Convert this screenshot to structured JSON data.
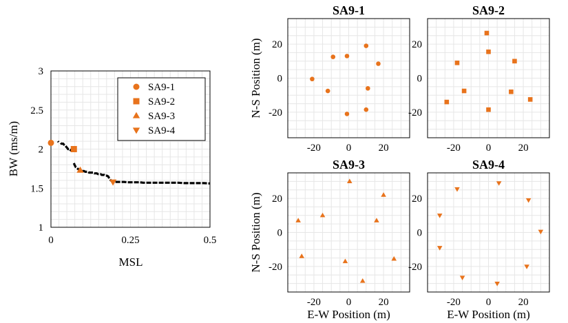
{
  "colors": {
    "marker": "#e8731c",
    "line": "#000000",
    "grid": "#e6e6e6"
  },
  "chart_data": [
    {
      "type": "line",
      "xlabel": "MSL",
      "ylabel": "BW (ms/m)",
      "xlim": [
        0,
        0.5
      ],
      "ylim": [
        1,
        3
      ],
      "xticks": [
        0,
        0.25,
        0.5
      ],
      "xtick_labels": [
        "0",
        "0.25",
        "0.5"
      ],
      "yticks": [
        1,
        1.5,
        2,
        2.5,
        3
      ],
      "ytick_labels": [
        "1",
        "1.5",
        "2",
        "2.5",
        "3"
      ],
      "grid": true,
      "legend": "top-right",
      "curve": {
        "x": [
          0.022,
          0.024,
          0.031,
          0.033,
          0.038,
          0.04,
          0.044,
          0.046,
          0.048,
          0.05,
          0.052,
          0.054,
          0.056,
          0.058,
          0.06,
          0.062,
          0.064,
          0.066,
          0.068,
          0.07,
          0.072,
          0.075,
          0.078,
          0.081,
          0.084,
          0.087,
          0.09,
          0.093,
          0.096,
          0.1,
          0.104,
          0.108,
          0.112,
          0.116,
          0.12,
          0.124,
          0.128,
          0.132,
          0.136,
          0.14,
          0.144,
          0.148,
          0.152,
          0.156,
          0.16,
          0.164,
          0.168,
          0.172,
          0.176,
          0.18,
          0.184,
          0.188,
          0.192,
          0.196,
          0.2,
          0.205,
          0.21,
          0.22,
          0.23,
          0.24,
          0.25,
          0.26,
          0.27,
          0.28,
          0.29,
          0.3,
          0.31,
          0.32,
          0.34,
          0.36,
          0.38,
          0.4,
          0.42,
          0.44,
          0.46,
          0.48,
          0.5
        ],
        "y": [
          2.1,
          2.09,
          2.08,
          2.07,
          2.07,
          2.06,
          2.05,
          2.04,
          2.03,
          2.02,
          2.01,
          2.0,
          2.0,
          2.0,
          1.99,
          1.99,
          1.98,
          1.98,
          1.98,
          1.97,
          1.82,
          1.79,
          1.77,
          1.76,
          1.75,
          1.74,
          1.73,
          1.73,
          1.72,
          1.72,
          1.72,
          1.71,
          1.71,
          1.71,
          1.7,
          1.7,
          1.7,
          1.7,
          1.69,
          1.69,
          1.69,
          1.68,
          1.68,
          1.68,
          1.67,
          1.67,
          1.67,
          1.66,
          1.66,
          1.65,
          1.62,
          1.6,
          1.59,
          1.58,
          1.58,
          1.58,
          1.58,
          1.58,
          1.58,
          1.575,
          1.575,
          1.575,
          1.575,
          1.575,
          1.57,
          1.57,
          1.57,
          1.57,
          1.57,
          1.57,
          1.57,
          1.57,
          1.565,
          1.565,
          1.565,
          1.565,
          1.56
        ]
      },
      "series": [
        {
          "name": "SA9-1",
          "marker": "circle",
          "x": [
            0.0
          ],
          "y": [
            2.08
          ]
        },
        {
          "name": "SA9-2",
          "marker": "square",
          "x": [
            0.072
          ],
          "y": [
            2.0
          ]
        },
        {
          "name": "SA9-3",
          "marker": "triangle-up",
          "x": [
            0.092
          ],
          "y": [
            1.73
          ]
        },
        {
          "name": "SA9-4",
          "marker": "triangle-down",
          "x": [
            0.195
          ],
          "y": [
            1.58
          ]
        }
      ]
    },
    {
      "type": "scatter",
      "title": "SA9-1",
      "marker": "circle",
      "xlabel": "",
      "ylabel": "N-S Position (m)",
      "xlim": [
        -35,
        35
      ],
      "ylim": [
        -35,
        35
      ],
      "xticks": [
        -20,
        0,
        20
      ],
      "yticks": [
        -20,
        0,
        20
      ],
      "grid": true,
      "x": [
        -9,
        -1,
        10,
        17,
        11,
        10,
        -1,
        -12,
        -21
      ],
      "y": [
        12.5,
        13,
        19,
        8.5,
        -6,
        -18.5,
        -21,
        -7.5,
        -0.5
      ]
    },
    {
      "type": "scatter",
      "title": "SA9-2",
      "marker": "square",
      "xlabel": "",
      "ylabel": "",
      "xlim": [
        -35,
        35
      ],
      "ylim": [
        -35,
        35
      ],
      "xticks": [
        -20,
        0,
        20
      ],
      "yticks": [
        -20,
        0,
        20
      ],
      "grid": true,
      "x": [
        -1,
        0,
        -18,
        15,
        -14,
        13,
        24,
        0,
        -24
      ],
      "y": [
        26.5,
        15.5,
        9,
        10,
        -7.5,
        -8,
        -12.5,
        -18.5,
        -14
      ]
    },
    {
      "type": "scatter",
      "title": "SA9-3",
      "marker": "triangle-up",
      "xlabel": "E-W Position (m)",
      "ylabel": "N-S Position (m)",
      "xlim": [
        -35,
        35
      ],
      "ylim": [
        -35,
        35
      ],
      "xticks": [
        -20,
        0,
        20
      ],
      "yticks": [
        -20,
        0,
        20
      ],
      "grid": true,
      "x": [
        0.5,
        20,
        -15,
        -29,
        16,
        -27,
        -2,
        26,
        8
      ],
      "y": [
        30,
        22,
        10,
        7,
        7,
        -14,
        -17,
        -15.5,
        -28.5
      ]
    },
    {
      "type": "scatter",
      "title": "SA9-4",
      "marker": "triangle-down",
      "xlabel": "E-W Position (m)",
      "ylabel": "",
      "xlim": [
        -35,
        35
      ],
      "ylim": [
        -35,
        35
      ],
      "xticks": [
        -20,
        0,
        20
      ],
      "yticks": [
        -20,
        0,
        20
      ],
      "grid": true,
      "x": [
        -18,
        6,
        23,
        -28,
        30,
        -28,
        22,
        -15,
        5
      ],
      "y": [
        25.5,
        29,
        19,
        10,
        0.5,
        -9,
        -20,
        -26.5,
        -30
      ]
    }
  ]
}
